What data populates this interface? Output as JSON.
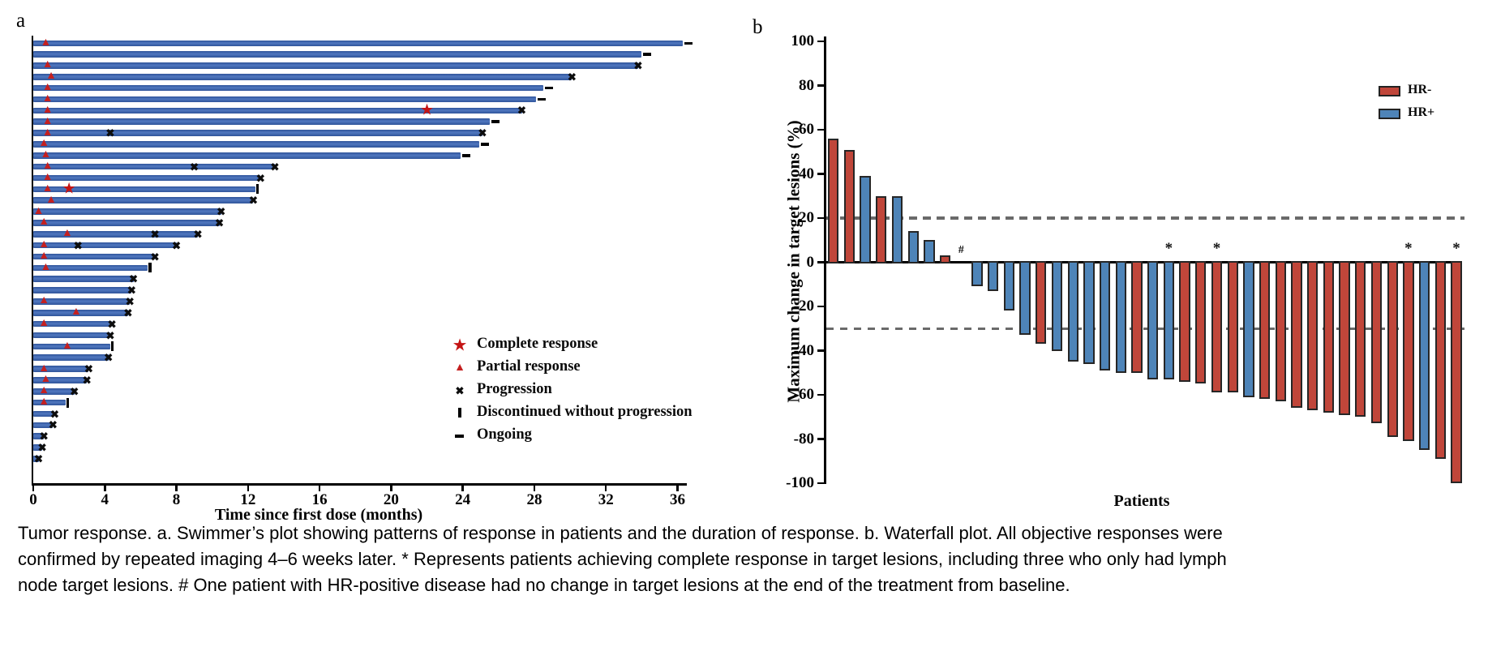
{
  "figure": {
    "panel_a_label": "a",
    "panel_b_label": "b"
  },
  "caption": {
    "lines": [
      "Tumor response. a. Swimmer’s plot showing patterns of response in patients and the duration of response. b. Waterfall plot. All objective responses were",
      "confirmed by repeated imaging 4–6 weeks later. * Represents patients achieving complete response in target lesions, including three who only had lymph",
      "node target lesions. # One patient with HR-positive disease had no change in target lesions at the end of the treatment from baseline."
    ]
  },
  "colors": {
    "swimmer_bar": "#3a5fa5",
    "hr_negative": "#c0463a",
    "hr_positive": "#4e84b8",
    "marker_red": "#c42020",
    "marker_black": "#111111",
    "dashed_line": "#6a6a6a",
    "axis": "#000000"
  },
  "chart_data": [
    {
      "type": "bar",
      "variant": "swimmer",
      "panel": "a",
      "xlabel": "Time since first dose (months)",
      "xlim": [
        0,
        38
      ],
      "xticks": [
        0,
        4,
        8,
        12,
        16,
        20,
        24,
        28,
        32,
        36
      ],
      "legend": [
        {
          "symbol": "star",
          "label": "Complete response"
        },
        {
          "symbol": "triangle",
          "label": "Partial response"
        },
        {
          "symbol": "x",
          "label": "Progression"
        },
        {
          "symbol": "bar",
          "label": "Discontinued without progression"
        },
        {
          "symbol": "dash",
          "label": "Ongoing"
        }
      ],
      "patients": [
        {
          "months": 36.3,
          "partial_response": 0.7,
          "complete_response": null,
          "progressions": [],
          "end": "ongoing"
        },
        {
          "months": 34.0,
          "partial_response": null,
          "complete_response": null,
          "progressions": [],
          "end": "ongoing"
        },
        {
          "months": 33.8,
          "partial_response": 0.8,
          "complete_response": null,
          "progressions": [],
          "end": "progression"
        },
        {
          "months": 30.1,
          "partial_response": 1.0,
          "complete_response": null,
          "progressions": [],
          "end": "progression"
        },
        {
          "months": 28.5,
          "partial_response": 0.8,
          "complete_response": null,
          "progressions": [],
          "end": "ongoing"
        },
        {
          "months": 28.1,
          "partial_response": 0.8,
          "complete_response": null,
          "progressions": [],
          "end": "ongoing"
        },
        {
          "months": 27.3,
          "partial_response": 0.8,
          "complete_response": 22.0,
          "progressions": [],
          "end": "progression"
        },
        {
          "months": 25.5,
          "partial_response": 0.8,
          "complete_response": null,
          "progressions": [],
          "end": "ongoing"
        },
        {
          "months": 25.1,
          "partial_response": 0.8,
          "complete_response": null,
          "progressions": [
            4.3
          ],
          "end": "progression"
        },
        {
          "months": 24.9,
          "partial_response": 0.6,
          "complete_response": null,
          "progressions": [],
          "end": "ongoing"
        },
        {
          "months": 23.9,
          "partial_response": 0.7,
          "complete_response": null,
          "progressions": [],
          "end": "ongoing"
        },
        {
          "months": 13.5,
          "partial_response": 0.8,
          "complete_response": null,
          "progressions": [
            9.0
          ],
          "end": "progression"
        },
        {
          "months": 12.7,
          "partial_response": 0.8,
          "complete_response": null,
          "progressions": [],
          "end": "progression"
        },
        {
          "months": 12.4,
          "partial_response": 0.8,
          "complete_response": 2.0,
          "progressions": [],
          "end": "discontinued"
        },
        {
          "months": 12.3,
          "partial_response": 1.0,
          "complete_response": null,
          "progressions": [],
          "end": "progression"
        },
        {
          "months": 10.5,
          "partial_response": 0.3,
          "complete_response": null,
          "progressions": [],
          "end": "progression"
        },
        {
          "months": 10.4,
          "partial_response": 0.6,
          "complete_response": null,
          "progressions": [],
          "end": "progression"
        },
        {
          "months": 9.2,
          "partial_response": 1.9,
          "complete_response": null,
          "progressions": [
            6.8
          ],
          "end": "progression"
        },
        {
          "months": 8.0,
          "partial_response": 0.6,
          "complete_response": null,
          "progressions": [
            2.5
          ],
          "end": "progression"
        },
        {
          "months": 6.8,
          "partial_response": 0.6,
          "complete_response": null,
          "progressions": [],
          "end": "progression"
        },
        {
          "months": 6.4,
          "partial_response": 0.7,
          "complete_response": null,
          "progressions": [],
          "end": "discontinued"
        },
        {
          "months": 5.6,
          "partial_response": null,
          "complete_response": null,
          "progressions": [],
          "end": "progression"
        },
        {
          "months": 5.5,
          "partial_response": null,
          "complete_response": null,
          "progressions": [],
          "end": "progression"
        },
        {
          "months": 5.4,
          "partial_response": 0.6,
          "complete_response": null,
          "progressions": [],
          "end": "progression"
        },
        {
          "months": 5.3,
          "partial_response": 2.4,
          "complete_response": null,
          "progressions": [],
          "end": "progression"
        },
        {
          "months": 4.4,
          "partial_response": 0.6,
          "complete_response": null,
          "progressions": [],
          "end": "progression"
        },
        {
          "months": 4.3,
          "partial_response": null,
          "complete_response": null,
          "progressions": [],
          "end": "progression"
        },
        {
          "months": 4.3,
          "partial_response": 1.9,
          "complete_response": null,
          "progressions": [],
          "end": "discontinued"
        },
        {
          "months": 4.2,
          "partial_response": null,
          "complete_response": null,
          "progressions": [],
          "end": "progression"
        },
        {
          "months": 3.1,
          "partial_response": 0.6,
          "complete_response": null,
          "progressions": [],
          "end": "progression"
        },
        {
          "months": 3.0,
          "partial_response": 0.7,
          "complete_response": null,
          "progressions": [],
          "end": "progression"
        },
        {
          "months": 2.3,
          "partial_response": 0.6,
          "complete_response": null,
          "progressions": [],
          "end": "progression"
        },
        {
          "months": 1.8,
          "partial_response": 0.6,
          "complete_response": null,
          "progressions": [],
          "end": "discontinued"
        },
        {
          "months": 1.2,
          "partial_response": null,
          "complete_response": null,
          "progressions": [],
          "end": "progression"
        },
        {
          "months": 1.1,
          "partial_response": null,
          "complete_response": null,
          "progressions": [],
          "end": "progression"
        },
        {
          "months": 0.6,
          "partial_response": null,
          "complete_response": null,
          "progressions": [],
          "end": "progression"
        },
        {
          "months": 0.5,
          "partial_response": null,
          "complete_response": null,
          "progressions": [],
          "end": "progression"
        },
        {
          "months": 0.3,
          "partial_response": null,
          "complete_response": null,
          "progressions": [],
          "end": "progression"
        }
      ]
    },
    {
      "type": "bar",
      "variant": "waterfall",
      "panel": "b",
      "ylabel": "Maximum change in target lesions (%)",
      "xlabel": "Patients",
      "ylim": [
        -100,
        100
      ],
      "yticks": [
        100,
        80,
        60,
        40,
        20,
        0,
        -20,
        -40,
        -60,
        -80,
        -100
      ],
      "reference_lines": [
        20,
        -30
      ],
      "legend": [
        {
          "label": "HR-",
          "group": "HR-"
        },
        {
          "label": "HR+",
          "group": "HR+"
        }
      ],
      "bars": [
        {
          "value": 56,
          "group": "HR-",
          "annotation": null
        },
        {
          "value": 51,
          "group": "HR-",
          "annotation": null
        },
        {
          "value": 39,
          "group": "HR+",
          "annotation": null
        },
        {
          "value": 30,
          "group": "HR-",
          "annotation": null
        },
        {
          "value": 30,
          "group": "HR+",
          "annotation": null
        },
        {
          "value": 14,
          "group": "HR+",
          "annotation": null
        },
        {
          "value": 10,
          "group": "HR+",
          "annotation": null
        },
        {
          "value": 3,
          "group": "HR-",
          "annotation": null
        },
        {
          "value": 0,
          "group": "HR+",
          "annotation": "#"
        },
        {
          "value": -11,
          "group": "HR+",
          "annotation": null
        },
        {
          "value": -13,
          "group": "HR+",
          "annotation": null
        },
        {
          "value": -22,
          "group": "HR+",
          "annotation": null
        },
        {
          "value": -33,
          "group": "HR+",
          "annotation": null
        },
        {
          "value": -37,
          "group": "HR-",
          "annotation": null
        },
        {
          "value": -40,
          "group": "HR+",
          "annotation": null
        },
        {
          "value": -45,
          "group": "HR+",
          "annotation": null
        },
        {
          "value": -46,
          "group": "HR+",
          "annotation": null
        },
        {
          "value": -49,
          "group": "HR+",
          "annotation": null
        },
        {
          "value": -50,
          "group": "HR+",
          "annotation": null
        },
        {
          "value": -50,
          "group": "HR-",
          "annotation": null
        },
        {
          "value": -53,
          "group": "HR+",
          "annotation": null
        },
        {
          "value": -53,
          "group": "HR+",
          "annotation": "*"
        },
        {
          "value": -54,
          "group": "HR-",
          "annotation": null
        },
        {
          "value": -55,
          "group": "HR-",
          "annotation": null
        },
        {
          "value": -59,
          "group": "HR-",
          "annotation": "*"
        },
        {
          "value": -59,
          "group": "HR-",
          "annotation": null
        },
        {
          "value": -61,
          "group": "HR+",
          "annotation": null
        },
        {
          "value": -62,
          "group": "HR-",
          "annotation": null
        },
        {
          "value": -63,
          "group": "HR-",
          "annotation": null
        },
        {
          "value": -66,
          "group": "HR-",
          "annotation": null
        },
        {
          "value": -67,
          "group": "HR-",
          "annotation": null
        },
        {
          "value": -68,
          "group": "HR-",
          "annotation": null
        },
        {
          "value": -69,
          "group": "HR-",
          "annotation": null
        },
        {
          "value": -70,
          "group": "HR-",
          "annotation": null
        },
        {
          "value": -73,
          "group": "HR-",
          "annotation": null
        },
        {
          "value": -79,
          "group": "HR-",
          "annotation": null
        },
        {
          "value": -81,
          "group": "HR-",
          "annotation": "*"
        },
        {
          "value": -85,
          "group": "HR+",
          "annotation": null
        },
        {
          "value": -89,
          "group": "HR-",
          "annotation": null
        },
        {
          "value": -100,
          "group": "HR-",
          "annotation": "*"
        }
      ]
    }
  ]
}
